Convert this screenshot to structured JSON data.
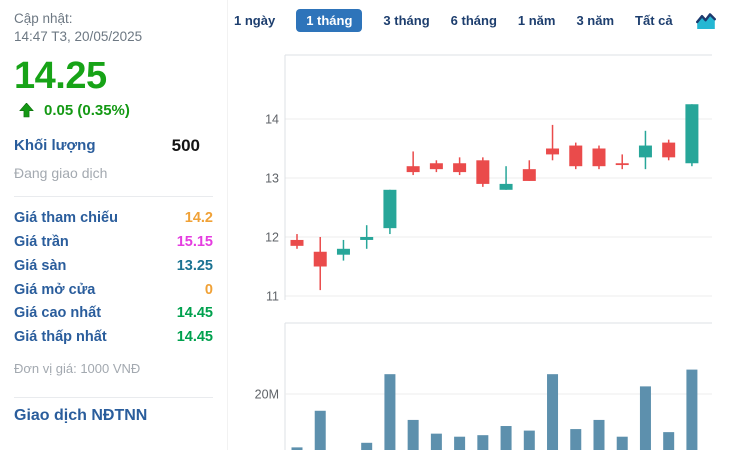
{
  "sidebar": {
    "updated_label": "Cập nhật:",
    "updated_time": "14:47 T3, 20/05/2025",
    "price": "14.25",
    "change": "0.05 (0.35%)",
    "volume_label": "Khối lượng",
    "volume_value": "500",
    "status": "Đang giao dịch",
    "rows": [
      {
        "label": "Giá tham chiếu",
        "value": "14.2",
        "color": "#f0a136"
      },
      {
        "label": "Giá trần",
        "value": "15.15",
        "color": "#e53ce0"
      },
      {
        "label": "Giá sàn",
        "value": "13.25",
        "color": "#1b7392"
      },
      {
        "label": "Giá mở cửa",
        "value": "0",
        "color": "#f0a136"
      },
      {
        "label": "Giá cao nhất",
        "value": "14.45",
        "color": "#00a14e"
      },
      {
        "label": "Giá thấp nhất",
        "value": "14.45",
        "color": "#00a14e"
      }
    ],
    "unit_note": "Đơn vị giá: 1000 VNĐ",
    "foreign_section_title": "Giao dịch NĐTNN"
  },
  "tabs": {
    "items": [
      "1 ngày",
      "1 tháng",
      "3 tháng",
      "6 tháng",
      "1 năm",
      "3 năm",
      "Tất cả"
    ],
    "active": "1 tháng"
  },
  "icons": {
    "change_direction": "up-arrow-icon",
    "chart_type": "area-chart-icon"
  },
  "colors": {
    "price_up_green": "#17a317",
    "active_tab_blue": "#2e74ba",
    "label_blue": "#2a5d9c"
  },
  "chart_data": [
    {
      "type": "candlestick",
      "title": "",
      "xlabel": "",
      "ylabel": "",
      "yticks": [
        11,
        12,
        13,
        14
      ],
      "ylim": [
        10.8,
        15.1
      ],
      "grid": true,
      "legend": "none",
      "up_color": "#27a699",
      "down_color": "#ea4b4b",
      "ohlc": [
        [
          11.95,
          12.05,
          11.8,
          11.85
        ],
        [
          11.75,
          12.0,
          11.1,
          11.5
        ],
        [
          11.7,
          11.95,
          11.6,
          11.8
        ],
        [
          11.95,
          12.2,
          11.8,
          12.0
        ],
        [
          12.15,
          12.8,
          12.05,
          12.8
        ],
        [
          13.2,
          13.45,
          13.05,
          13.1
        ],
        [
          13.25,
          13.3,
          13.1,
          13.15
        ],
        [
          13.25,
          13.35,
          13.05,
          13.1
        ],
        [
          13.3,
          13.35,
          12.85,
          12.9
        ],
        [
          12.8,
          13.2,
          12.8,
          12.9
        ],
        [
          13.15,
          13.3,
          12.95,
          12.95
        ],
        [
          13.5,
          13.9,
          13.3,
          13.4
        ],
        [
          13.55,
          13.6,
          13.15,
          13.2
        ],
        [
          13.5,
          13.55,
          13.15,
          13.2
        ],
        [
          13.25,
          13.4,
          13.15,
          13.22
        ],
        [
          13.35,
          13.8,
          13.15,
          13.55
        ],
        [
          13.6,
          13.65,
          13.3,
          13.35
        ],
        [
          13.25,
          14.25,
          13.2,
          14.25
        ]
      ]
    },
    {
      "type": "bar",
      "title": "",
      "ylabel": "",
      "ytick_label": "20M",
      "ytick_value_millions": 20,
      "grid": true,
      "color": "#5d90ad",
      "values_millions": [
        2.5,
        14.5,
        0,
        4,
        26.5,
        11.5,
        7,
        6,
        6.5,
        9.5,
        8,
        26.5,
        8.5,
        11.5,
        6,
        22.5,
        7.5,
        28
      ]
    }
  ]
}
